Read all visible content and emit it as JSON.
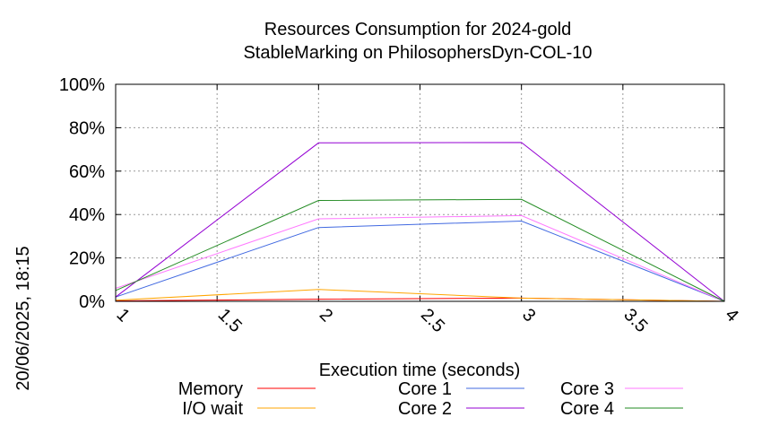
{
  "chart_data": {
    "type": "line",
    "title": "Resources Consumption for 2024-gold",
    "subtitle": "StableMarking on PhilosophersDyn-COL-10",
    "xlabel": "Execution time (seconds)",
    "side_label": "20/06/2025, 18:15",
    "xlim": [
      1,
      4
    ],
    "ylim": [
      0,
      100
    ],
    "x_ticks": [
      1,
      1.5,
      2,
      2.5,
      3,
      3.5,
      4
    ],
    "x_tick_labels": [
      "1",
      "1.5",
      "2",
      "2.5",
      "3",
      "3.5",
      "4"
    ],
    "y_ticks": [
      0,
      20,
      40,
      60,
      80,
      100
    ],
    "y_tick_labels": [
      "0%",
      "20%",
      "40%",
      "60%",
      "80%",
      "100%"
    ],
    "grid": true,
    "legend_position": "bottom",
    "series": [
      {
        "name": "Memory",
        "color": "#ff0000",
        "x": [
          1,
          2,
          3,
          4
        ],
        "values": [
          0.2,
          1.0,
          1.5,
          0
        ]
      },
      {
        "name": "I/O wait",
        "color": "#ffa500",
        "x": [
          1,
          2,
          3,
          4
        ],
        "values": [
          0.5,
          5.5,
          1.5,
          0
        ]
      },
      {
        "name": "Core 1",
        "color": "#4169e1",
        "x": [
          1,
          2,
          3,
          4
        ],
        "values": [
          2,
          34,
          37,
          0
        ]
      },
      {
        "name": "Core 2",
        "color": "#9400d3",
        "x": [
          1,
          2,
          3,
          4
        ],
        "values": [
          2,
          73,
          73.2,
          0
        ]
      },
      {
        "name": "Core 3",
        "color": "#ff77ff",
        "x": [
          1,
          2,
          3,
          4
        ],
        "values": [
          6,
          38,
          39.5,
          0
        ]
      },
      {
        "name": "Core 4",
        "color": "#228b22",
        "x": [
          1,
          2,
          3,
          4
        ],
        "values": [
          5,
          46.5,
          47,
          0
        ]
      }
    ]
  }
}
